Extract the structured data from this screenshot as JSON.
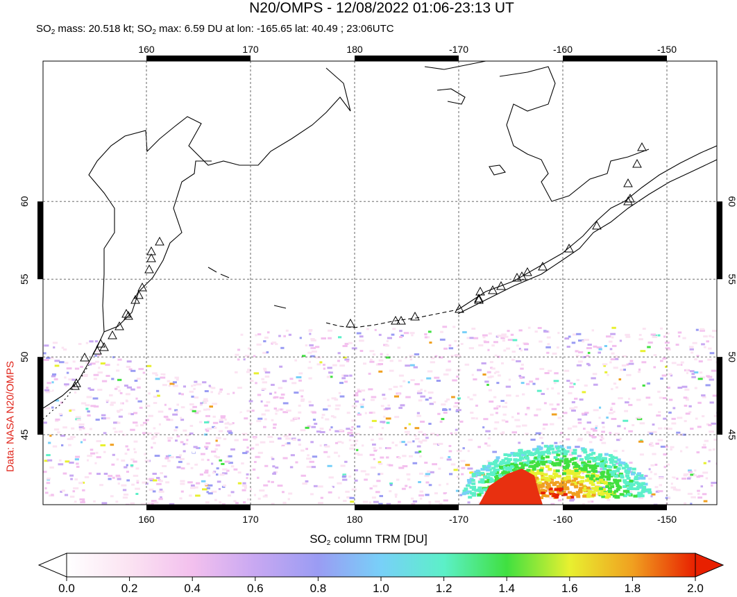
{
  "title": "N20/OMPS - 12/08/2022 01:06-23:13 UT",
  "subtitle": {
    "part1": "SO",
    "sub1": "2",
    "part2": " mass: 20.518 kt; SO",
    "sub2": "2",
    "part3": " max: 6.59 DU at lon: -165.65 lat: 40.49 ; 23:06UTC"
  },
  "credit": "Data: NASA N20/OMPS",
  "map": {
    "lon_labels": [
      "160",
      "170",
      "180",
      "-170",
      "-160",
      "-150"
    ],
    "lat_labels": [
      "60",
      "55",
      "50",
      "45"
    ],
    "lon_values": [
      160,
      170,
      180,
      190,
      200,
      210
    ],
    "lat_values": [
      60,
      55,
      50,
      45
    ],
    "lon_range": [
      150,
      215
    ],
    "lat_range": [
      40,
      66
    ]
  },
  "colorbar": {
    "label_main": "SO",
    "label_sub": "2",
    "label_rest": " column TRM [DU]",
    "ticks": [
      "0.0",
      "0.2",
      "0.4",
      "0.6",
      "0.8",
      "1.0",
      "1.2",
      "1.4",
      "1.6",
      "1.8",
      "2.0"
    ],
    "range": [
      0,
      2
    ],
    "colors": [
      "#ffffff",
      "#fbe3f2",
      "#f3c0ee",
      "#c8a8f2",
      "#9a9cf3",
      "#78d0f8",
      "#5cf0c8",
      "#40e040",
      "#e8f030",
      "#f0a020",
      "#e82000"
    ]
  },
  "volcano_count": 38,
  "plume": {
    "description_color": "#e83010"
  }
}
